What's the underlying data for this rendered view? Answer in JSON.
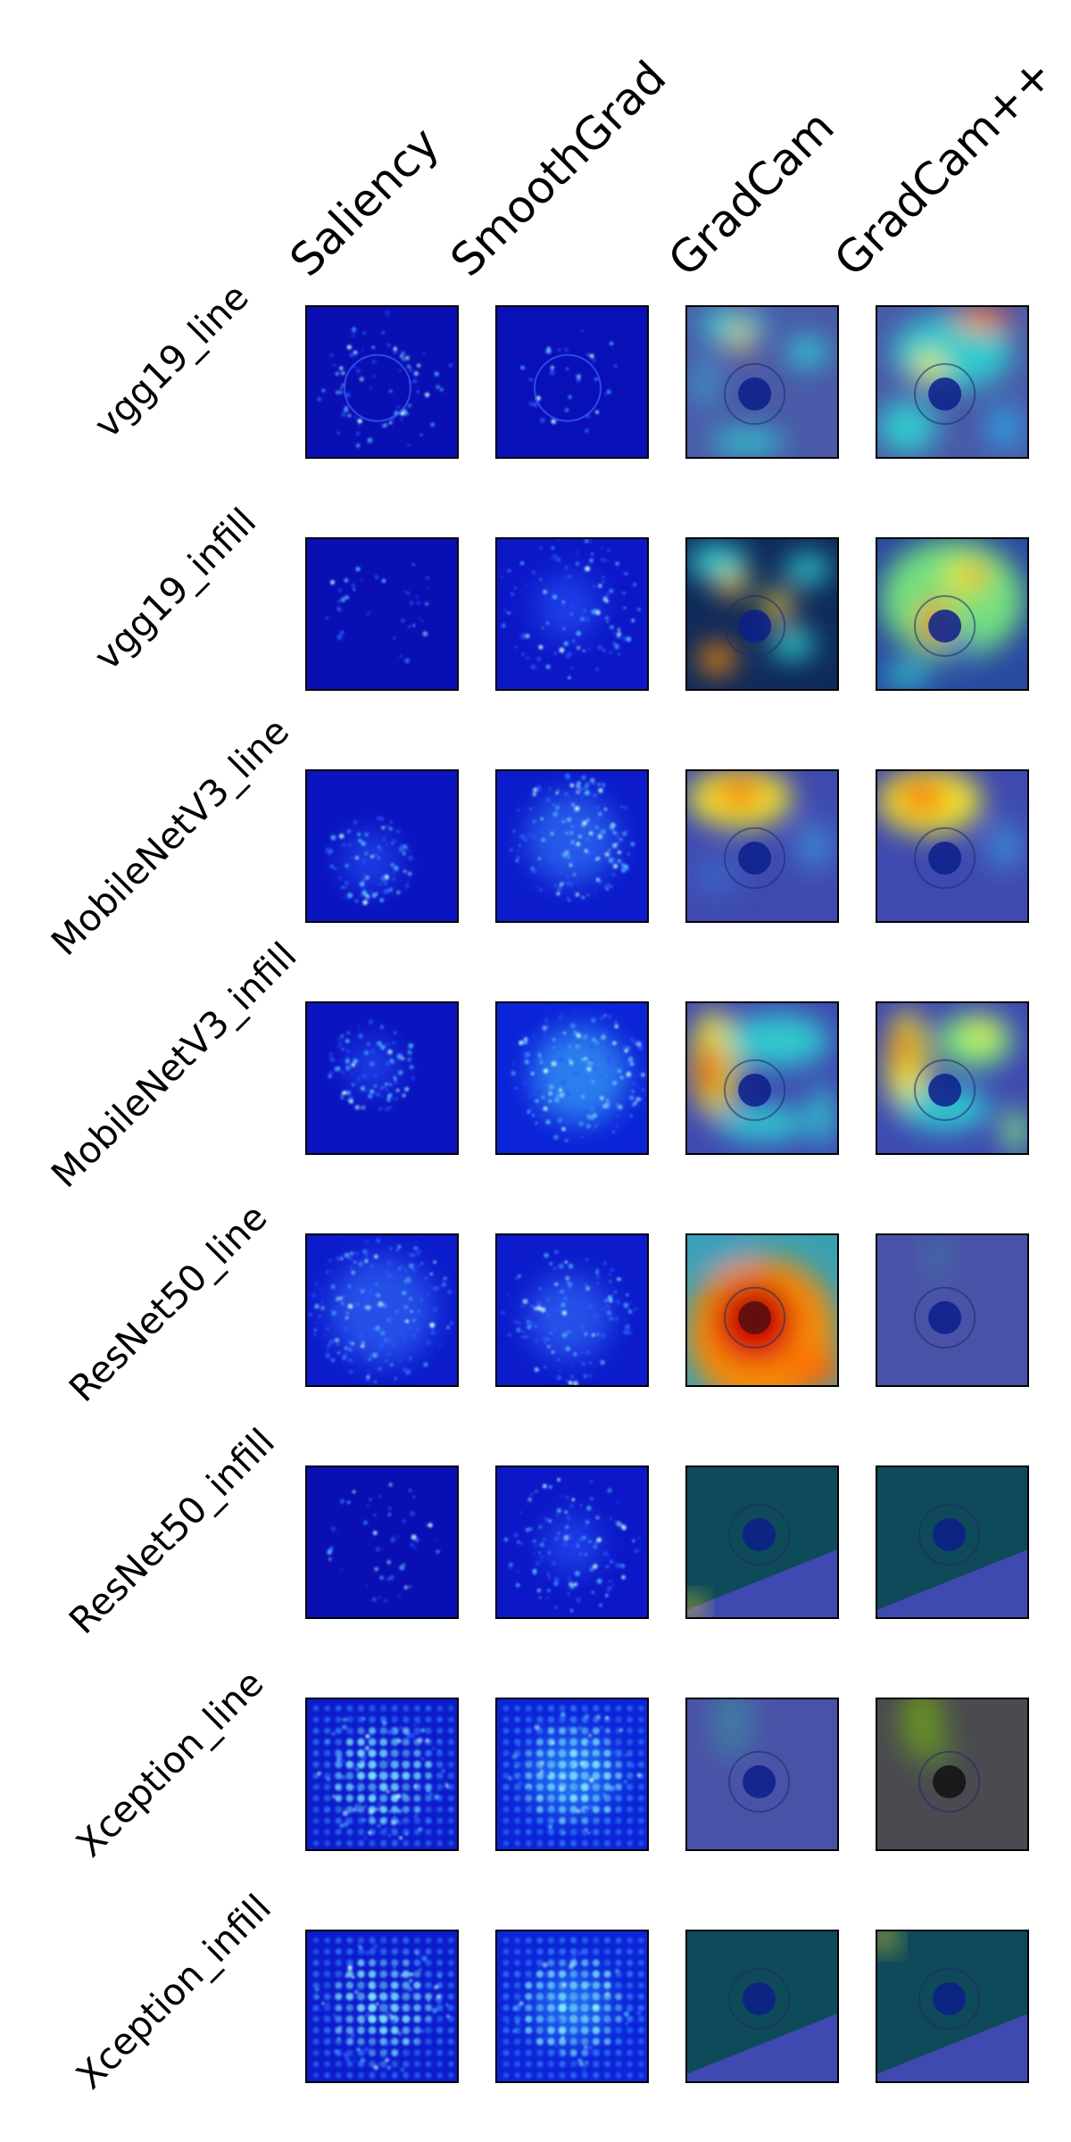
{
  "columns": [
    "Saliency",
    "SmoothGrad",
    "GradCam",
    "GradCam++"
  ],
  "rows": [
    "vgg19_line",
    "vgg19_infill",
    "MobileNetV3_line",
    "MobileNetV3_infill",
    "ResNet50_line",
    "ResNet50_infill",
    "Xception_line",
    "Xception_infill"
  ],
  "colors": {
    "saliency_bg": "#0a0fb4",
    "smoothgrad_bg": "#0c18c8",
    "cam_low": "#3f4aa0",
    "cam_mid": "#2fd0d0",
    "cam_high": "#e01010",
    "cam_dark_teal": "#0f4a5a"
  }
}
